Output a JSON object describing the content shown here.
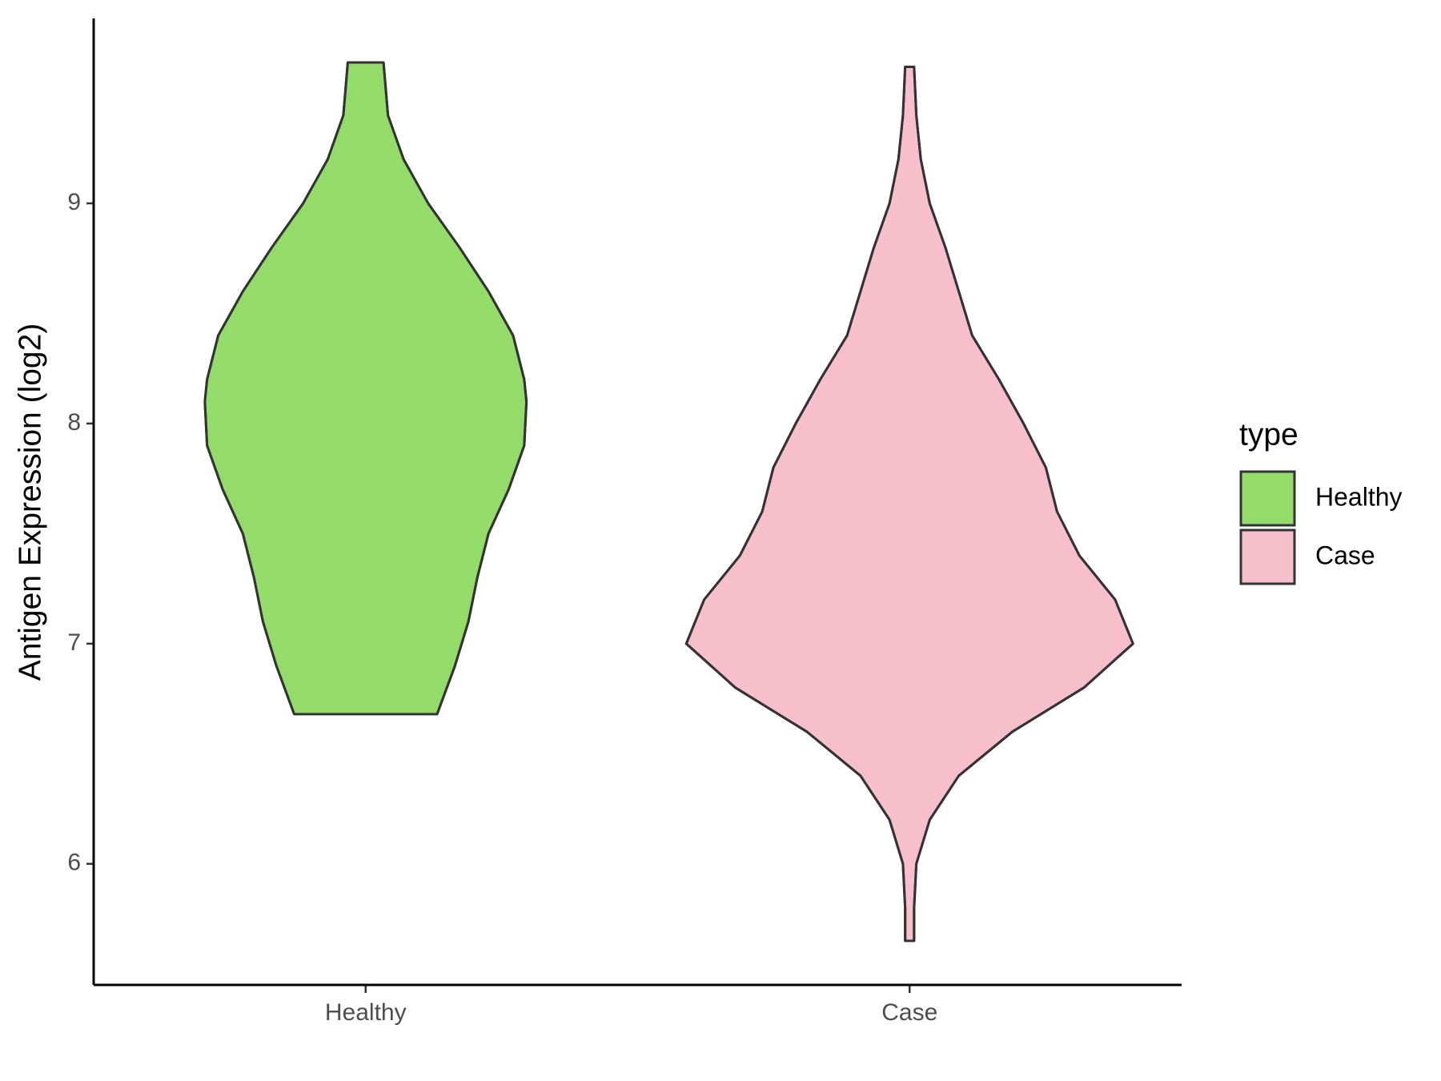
{
  "chart_data": {
    "type": "violin",
    "ylabel": "Antigen Expression (log2)",
    "ylim": [
      5.45,
      9.84
    ],
    "yticks": [
      6,
      7,
      8,
      9
    ],
    "categories": [
      "Healthy",
      "Case"
    ],
    "legend_title": "type",
    "legend_position": "right",
    "series": [
      {
        "name": "Healthy",
        "color": "#93dc6a",
        "y": [
          9.64,
          9.4,
          9.2,
          9.0,
          8.8,
          8.6,
          8.4,
          8.2,
          8.1,
          7.9,
          7.7,
          7.5,
          7.3,
          7.1,
          6.9,
          6.68
        ],
        "widths": [
          0.08,
          0.1,
          0.17,
          0.28,
          0.42,
          0.55,
          0.66,
          0.71,
          0.72,
          0.71,
          0.64,
          0.55,
          0.5,
          0.46,
          0.4,
          0.32
        ]
      },
      {
        "name": "Case",
        "color": "#f7bfcb",
        "y": [
          9.62,
          9.4,
          9.2,
          9.0,
          8.8,
          8.6,
          8.4,
          8.2,
          8.0,
          7.8,
          7.6,
          7.4,
          7.2,
          7.0,
          6.8,
          6.6,
          6.4,
          6.2,
          6.0,
          5.8,
          5.65
        ],
        "widths": [
          0.02,
          0.03,
          0.05,
          0.09,
          0.16,
          0.22,
          0.28,
          0.4,
          0.51,
          0.61,
          0.66,
          0.76,
          0.92,
          1,
          0.78,
          0.46,
          0.22,
          0.09,
          0.03,
          0.02,
          0.02
        ]
      }
    ]
  }
}
